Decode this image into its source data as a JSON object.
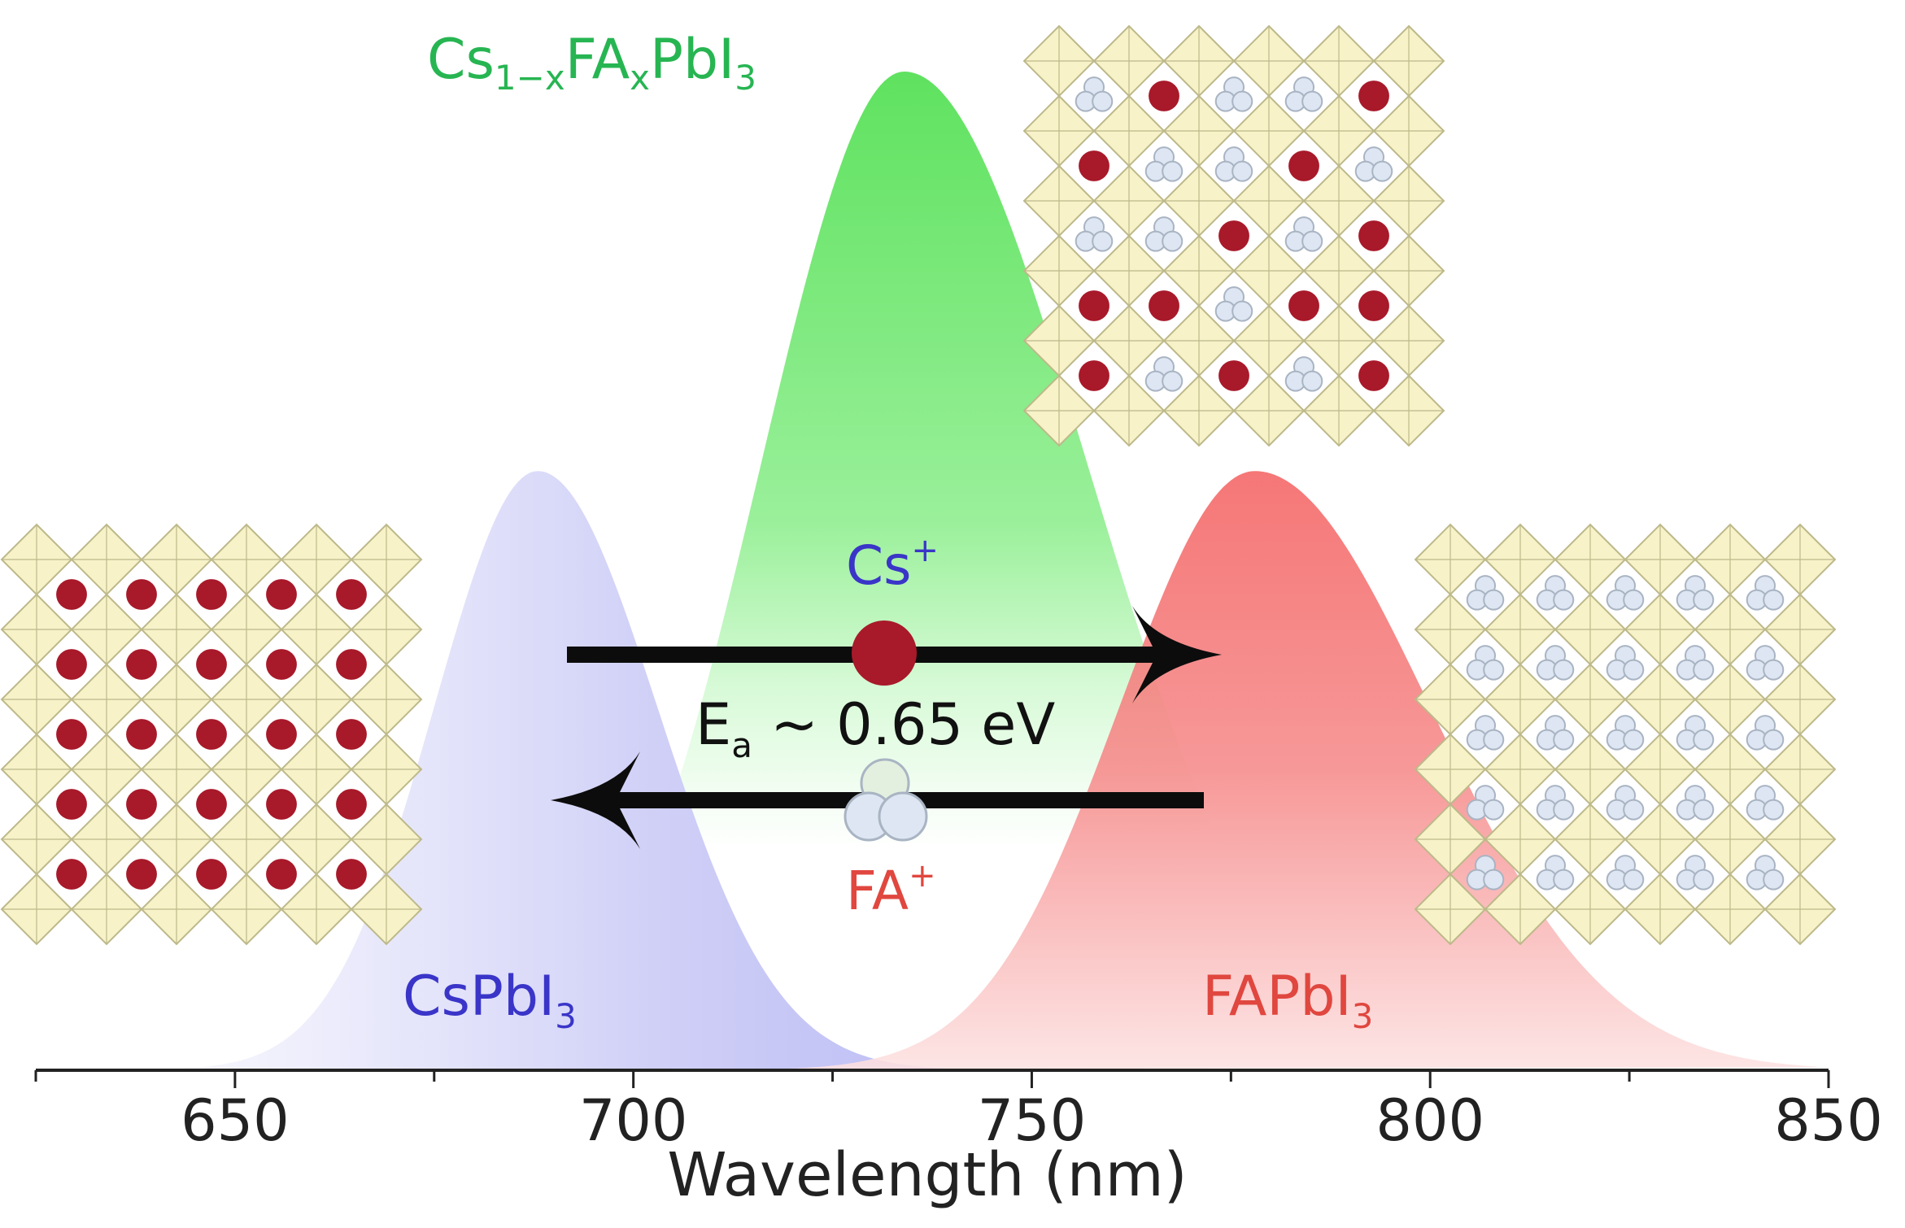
{
  "colors": {
    "cs_series": "#8f8ff0",
    "fa_series": "#f46c6c",
    "mixed_series": "#66e466",
    "cs_label": "#3a35c8",
    "fa_label": "#e0473f",
    "mixed_label": "#27b552",
    "cs_ion": "#a8192a",
    "fa_ion_fill": "#dde6f2",
    "fa_ion_stroke": "#a9b4c3",
    "lattice_fill": "#f7f2c8",
    "lattice_line": "#bdb98a",
    "axis": "#222222",
    "arrow": "#0c0c0c"
  },
  "labels": {
    "mixed": {
      "main": "Cs",
      "sub": "1−x",
      "mid": "FA",
      "sub2": "x",
      "end": "PbI",
      "sub3": "3"
    },
    "cs_compound": {
      "main": "CsPbI",
      "sub": "3"
    },
    "fa_compound": {
      "main": "FAPbI",
      "sub": "3"
    },
    "cs_ion": {
      "main": "Cs",
      "sup": "+"
    },
    "fa_ion": {
      "main": "FA",
      "sup": "+"
    },
    "activation": {
      "main": "E",
      "sub": "a",
      "rest": " ~ 0.65 eV"
    }
  },
  "lattices": {
    "cs": {
      "grid": [
        [
          "cs",
          "cs",
          "cs",
          "cs",
          "cs"
        ],
        [
          "cs",
          "cs",
          "cs",
          "cs",
          "cs"
        ],
        [
          "cs",
          "cs",
          "cs",
          "cs",
          "cs"
        ],
        [
          "cs",
          "cs",
          "cs",
          "cs",
          "cs"
        ],
        [
          "cs",
          "cs",
          "cs",
          "cs",
          "cs"
        ]
      ]
    },
    "mixed": {
      "grid": [
        [
          "fa",
          "cs",
          "fa",
          "fa",
          "cs"
        ],
        [
          "cs",
          "fa",
          "fa",
          "cs",
          "fa"
        ],
        [
          "fa",
          "fa",
          "cs",
          "fa",
          "cs"
        ],
        [
          "cs",
          "cs",
          "fa",
          "cs",
          "cs"
        ],
        [
          "cs",
          "fa",
          "cs",
          "fa",
          "cs"
        ]
      ]
    },
    "fa": {
      "grid": [
        [
          "fa",
          "fa",
          "fa",
          "fa",
          "fa"
        ],
        [
          "fa",
          "fa",
          "fa",
          "fa",
          "fa"
        ],
        [
          "fa",
          "fa",
          "fa",
          "fa",
          "fa"
        ],
        [
          "fa",
          "fa",
          "fa",
          "fa",
          "fa"
        ],
        [
          "fa",
          "fa",
          "fa",
          "fa",
          "fa"
        ]
      ]
    }
  },
  "chart_data": {
    "type": "area",
    "xlabel": "Wavelength (nm)",
    "ylabel": "",
    "xlim": [
      625,
      850
    ],
    "ylim": [
      0,
      1
    ],
    "major_ticks": [
      650,
      700,
      750,
      800,
      850
    ],
    "minor_ticks": [
      625,
      675,
      725,
      775,
      825
    ],
    "series": [
      {
        "key": "mixed",
        "name": "Cs1−xFAxPbI3",
        "peak": 734,
        "amplitude": 1.0,
        "sigma_left": 18,
        "sigma_right": 23
      },
      {
        "key": "cs",
        "name": "CsPbI3",
        "peak": 688,
        "amplitude": 0.6,
        "sigma_left": 13,
        "sigma_right": 15
      },
      {
        "key": "fa",
        "name": "FAPbI3",
        "peak": 778,
        "amplitude": 0.6,
        "sigma_left": 17,
        "sigma_right": 22
      }
    ]
  }
}
